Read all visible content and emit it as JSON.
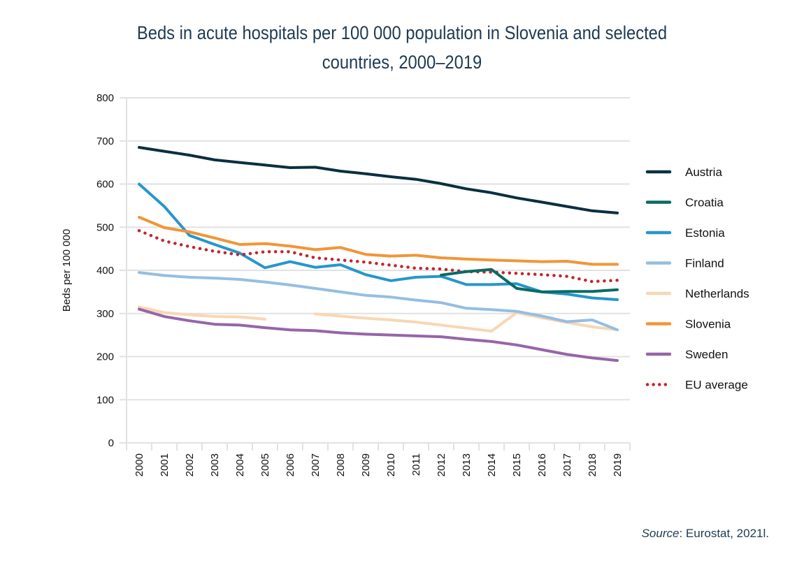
{
  "chart_data": {
    "type": "line",
    "title": "Beds in acute hospitals per 100 000 population in Slovenia and selected countries, 2000–2019",
    "title_lines": [
      "Beds in acute hospitals per 100 000 population in Slovenia and selected",
      "countries, 2000–2019"
    ],
    "xlabel": "",
    "ylabel": "Beds per 100 000",
    "ylim": [
      0,
      800
    ],
    "yticks": [
      0,
      100,
      200,
      300,
      400,
      500,
      600,
      700,
      800
    ],
    "grid": true,
    "legend_position": "right",
    "categories": [
      "2000",
      "2001",
      "2002",
      "2003",
      "2004",
      "2005",
      "2006",
      "2007",
      "2008",
      "2009",
      "2010",
      "2011",
      "2012",
      "2013",
      "2014",
      "2015",
      "2016",
      "2017",
      "2018",
      "2019"
    ],
    "series": [
      {
        "name": "Austria",
        "color": "#0b2f40",
        "style": "solid",
        "values": [
          685,
          676,
          667,
          656,
          650,
          644,
          638,
          639,
          630,
          624,
          617,
          611,
          601,
          589,
          580,
          568,
          558,
          548,
          538,
          533
        ]
      },
      {
        "name": "Croatia",
        "color": "#0b6a63",
        "style": "solid",
        "values": [
          null,
          null,
          null,
          null,
          null,
          null,
          null,
          null,
          null,
          null,
          null,
          null,
          389,
          397,
          402,
          358,
          350,
          351,
          351,
          355
        ]
      },
      {
        "name": "Estonia",
        "color": "#2796cc",
        "style": "solid",
        "values": [
          600,
          548,
          481,
          460,
          440,
          406,
          420,
          407,
          413,
          390,
          376,
          384,
          386,
          367,
          367,
          369,
          350,
          345,
          336,
          332
        ]
      },
      {
        "name": "Finland",
        "color": "#95bee1",
        "style": "solid",
        "values": [
          395,
          388,
          384,
          382,
          379,
          373,
          366,
          358,
          350,
          342,
          338,
          331,
          325,
          312,
          309,
          305,
          294,
          281,
          285,
          262
        ]
      },
      {
        "name": "Netherlands",
        "color": "#f9d6b3",
        "style": "solid",
        "values": [
          315,
          302,
          297,
          293,
          292,
          287,
          null,
          299,
          294,
          289,
          285,
          280,
          273,
          266,
          259,
          302,
          290,
          279,
          269,
          262
        ]
      },
      {
        "name": "Slovenia",
        "color": "#f29536",
        "style": "solid",
        "values": [
          523,
          499,
          489,
          475,
          460,
          462,
          456,
          448,
          453,
          437,
          433,
          435,
          429,
          426,
          424,
          422,
          420,
          421,
          414,
          414
        ]
      },
      {
        "name": "Sweden",
        "color": "#9665a8",
        "style": "solid",
        "values": [
          310,
          293,
          283,
          275,
          273,
          267,
          262,
          260,
          255,
          252,
          250,
          248,
          246,
          240,
          235,
          227,
          216,
          205,
          197,
          191
        ]
      },
      {
        "name": "EU average",
        "color": "#c1272d",
        "style": "dotted",
        "values": [
          492,
          468,
          455,
          444,
          436,
          443,
          443,
          429,
          424,
          419,
          412,
          405,
          403,
          397,
          396,
          393,
          390,
          386,
          374,
          377
        ]
      }
    ]
  },
  "source": {
    "prefix": "Source",
    "text": ": Eurostat, 2021l."
  }
}
